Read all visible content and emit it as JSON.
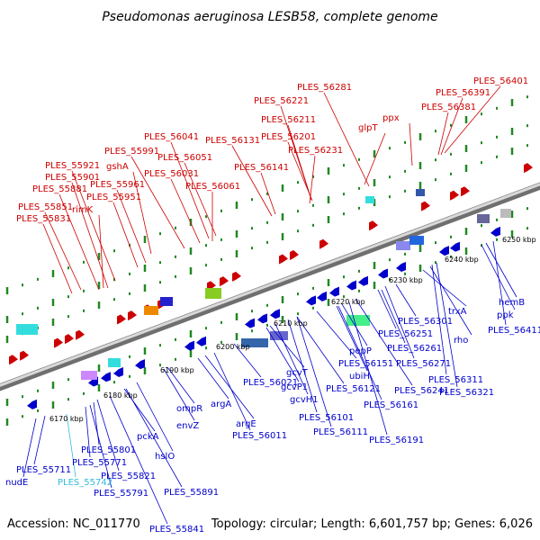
{
  "header": {
    "title": "Pseudomonas aeruginosa LESB58, complete genome"
  },
  "footer": {
    "accession": "Accession: NC_011770",
    "summary": "Topology: circular; Length: 6,601,757 bp; Genes: 6,026"
  },
  "colors": {
    "forward": "#cc0000",
    "reverse": "#0000cc",
    "rna": "#33bbdd",
    "backbone": "#888888",
    "ticks": "#228822"
  },
  "kbp_ticks": [
    "6170 kbp",
    "6180 kbp",
    "6190 kbp",
    "6200 kbp",
    "6210 kbp",
    "6220 kbp",
    "6230 kbp",
    "6240 kbp",
    "6250 kbp"
  ],
  "forward_labels": [
    "PLES_55831",
    "PLES_55851",
    "rimK",
    "PLES_55881",
    "PLES_55901",
    "PLES_55921",
    "PLES_55951",
    "PLES_55961",
    "gshA",
    "PLES_55991",
    "PLES_56031",
    "PLES_56041",
    "PLES_56051",
    "PLES_56061",
    "PLES_56131",
    "PLES_56141",
    "PLES_56201",
    "PLES_56211",
    "PLES_56221",
    "PLES_56231",
    "PLES_56281",
    "glpT",
    "ppx",
    "PLES_56381",
    "PLES_56391",
    "PLES_56401"
  ],
  "reverse_labels": [
    "nudE",
    "PLES_55711",
    "PLES_55771",
    "PLES_55791",
    "PLES_55801",
    "PLES_55821",
    "PLES_55841",
    "pckA",
    "hslO",
    "PLES_55891",
    "ompR",
    "envZ",
    "argA",
    "argE",
    "PLES_56011",
    "PLES_56021",
    "gcvT",
    "gcvP1",
    "gcvH1",
    "PLES_56101",
    "PLES_56111",
    "PLES_56121",
    "PLES_56151",
    "pepP",
    "ubiH",
    "PLES_56161",
    "PLES_56191",
    "PLES_56241",
    "PLES_56251",
    "PLES_56261",
    "PLES_56271",
    "PLES_56301",
    "trxA",
    "rho",
    "PLES_56311",
    "PLES_56321",
    "ppk",
    "hemB",
    "PLES_56411"
  ],
  "rna_labels": [
    "PLES_55742"
  ]
}
